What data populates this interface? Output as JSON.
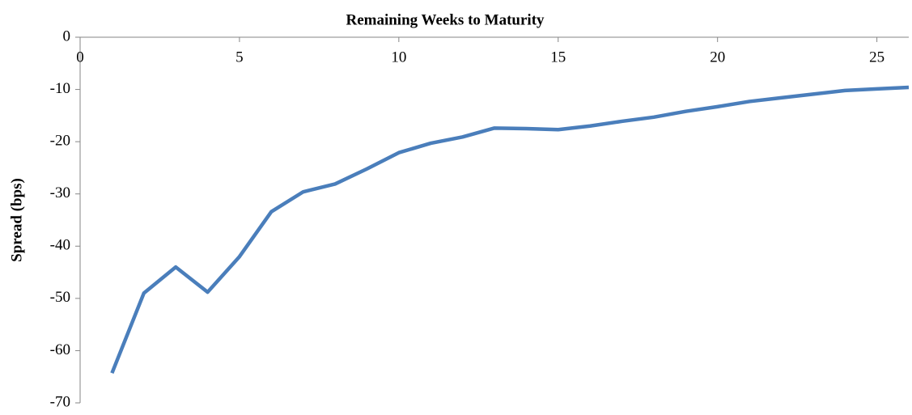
{
  "chart_data": {
    "type": "line",
    "title": "Remaining Weeks to Maturity",
    "y_label": "Spread (bps)",
    "x": [
      1,
      2,
      3,
      4,
      5,
      6,
      7,
      8,
      9,
      10,
      11,
      12,
      13,
      14,
      15,
      16,
      17,
      18,
      19,
      20,
      21,
      22,
      23,
      24,
      25,
      26
    ],
    "series": [
      {
        "name": "Spread",
        "color": "#4a7ebb",
        "values": [
          -64.3,
          -49.0,
          -44.0,
          -48.8,
          -42.0,
          -33.4,
          -29.6,
          -28.1,
          -25.2,
          -22.1,
          -20.3,
          -19.1,
          -17.4,
          -17.5,
          -17.7,
          -17.0,
          -16.1,
          -15.3,
          -14.2,
          -13.3,
          -12.3,
          -11.6,
          -10.9,
          -10.2,
          -9.9,
          -9.6
        ]
      }
    ],
    "xlim": [
      0,
      26
    ],
    "xticks": [
      0,
      5,
      10,
      15,
      20,
      25
    ],
    "ylim": [
      -70,
      0
    ],
    "yticks": [
      0,
      -10,
      -20,
      -30,
      -40,
      -50,
      -60,
      -70
    ]
  }
}
